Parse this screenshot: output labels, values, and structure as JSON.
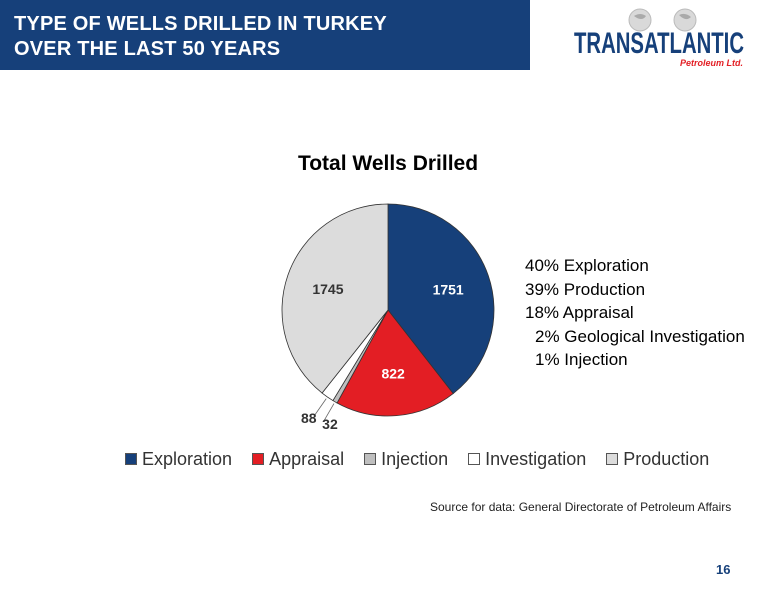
{
  "header": {
    "title_line1": "TYPE OF WELLS DRILLED IN TURKEY",
    "title_line2": "OVER THE LAST 50 YEARS",
    "bar_color": "#16407a"
  },
  "logo": {
    "name": "TransAtlantic Petroleum Ltd.",
    "text": "TRANSATLANTIC",
    "subtext": "Petroleum Ltd."
  },
  "chart_data": {
    "type": "pie",
    "title": "Total Wells Drilled",
    "slices": [
      {
        "label": "Exploration",
        "value": 1751,
        "color": "#16407a",
        "data_label": "1751"
      },
      {
        "label": "Appraisal",
        "value": 822,
        "color": "#e31e24",
        "data_label": "822"
      },
      {
        "label": "Injection",
        "value": 32,
        "color": "#bfbfbf",
        "data_label": "32"
      },
      {
        "label": "Investigation",
        "value": 88,
        "color": "#ffffff",
        "data_label": "88"
      },
      {
        "label": "Production",
        "value": 1745,
        "color": "#dcdcdc",
        "data_label": "1745"
      }
    ],
    "legend": [
      "Exploration",
      "Appraisal",
      "Injection",
      "Investigation",
      "Production"
    ],
    "legend_placement": "bottom"
  },
  "notes": [
    "40% Exploration",
    "39% Production",
    "18% Appraisal",
    "2% Geological Investigation",
    "1% Injection"
  ],
  "source": "Source for data: General Directorate of Petroleum Affairs",
  "page_number": "16"
}
